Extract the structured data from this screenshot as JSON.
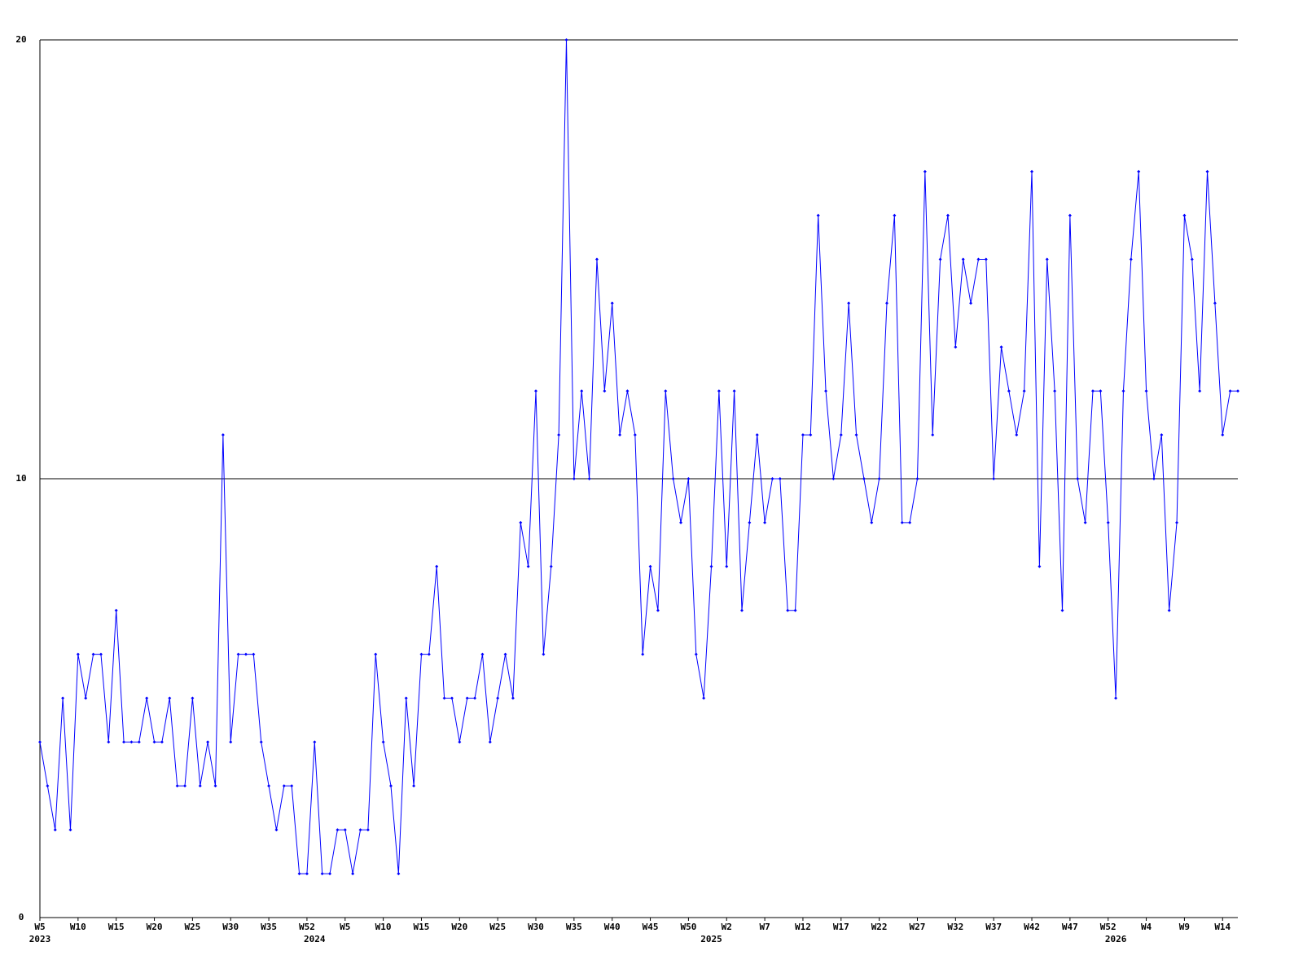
{
  "chart_data": {
    "type": "line",
    "categories": [
      "W5",
      null,
      null,
      null,
      null,
      "W10",
      null,
      null,
      null,
      null,
      "W15",
      null,
      null,
      null,
      null,
      "W20",
      null,
      null,
      null,
      null,
      "W25",
      null,
      null,
      null,
      null,
      "W30",
      null,
      null,
      null,
      null,
      "W35",
      null,
      null,
      null,
      null,
      "W52",
      null,
      null,
      null,
      null,
      "W5",
      null,
      null,
      null,
      null,
      "W10",
      null,
      null,
      null,
      null,
      "W15",
      null,
      null,
      null,
      null,
      "W20",
      null,
      null,
      null,
      null,
      "W25",
      null,
      null,
      null,
      null,
      "W30",
      null,
      null,
      null,
      null,
      "W35",
      null,
      null,
      null,
      null,
      "W40",
      null,
      null,
      null,
      null,
      "W45",
      null,
      null,
      null,
      null,
      "W50",
      null,
      null,
      null,
      null,
      "W2",
      null,
      null,
      null,
      null,
      "W7",
      null,
      null,
      null,
      null,
      "W12",
      null,
      null,
      null,
      null,
      "W17",
      null,
      null,
      null,
      null,
      "W22",
      null,
      null,
      null,
      null,
      "W27",
      null,
      null,
      null,
      null,
      "W32",
      null,
      null,
      null,
      null,
      "W37",
      null,
      null,
      null,
      null,
      "W42",
      null,
      null,
      null,
      null,
      "W47",
      null,
      null,
      null,
      null,
      "W52",
      null,
      null,
      null,
      null,
      "W4",
      null,
      null,
      null,
      null,
      "W9",
      null,
      null,
      null,
      null,
      "W14",
      null,
      null
    ],
    "category_years": [
      "2023",
      null,
      null,
      null,
      null,
      null,
      null,
      null,
      null,
      null,
      null,
      null,
      null,
      null,
      null,
      null,
      null,
      null,
      null,
      null,
      null,
      null,
      null,
      null,
      null,
      null,
      null,
      null,
      null,
      null,
      null,
      null,
      null,
      null,
      null,
      null,
      "2024",
      null,
      null,
      null,
      null,
      null,
      null,
      null,
      null,
      null,
      null,
      null,
      null,
      null,
      null,
      null,
      null,
      null,
      null,
      null,
      null,
      null,
      null,
      null,
      null,
      null,
      null,
      null,
      null,
      null,
      null,
      null,
      null,
      null,
      null,
      null,
      null,
      null,
      null,
      null,
      null,
      null,
      null,
      null,
      null,
      null,
      null,
      null,
      null,
      null,
      null,
      null,
      "2025",
      null,
      null,
      null,
      null,
      null,
      null,
      null,
      null,
      null,
      null,
      null,
      null,
      null,
      null,
      null,
      null,
      null,
      null,
      null,
      null,
      null,
      null,
      null,
      null,
      null,
      null,
      null,
      null,
      null,
      null,
      null,
      null,
      null,
      null,
      null,
      null,
      null,
      null,
      null,
      null,
      null,
      null,
      null,
      null,
      null,
      null,
      null,
      null,
      null,
      null,
      null,
      null,
      "2026",
      null,
      null,
      null,
      null,
      null,
      null,
      null,
      null,
      null,
      null,
      null,
      null,
      null,
      null,
      null,
      null
    ],
    "series": [
      {
        "color": "#0000ff",
        "values": [
          4,
          3,
          2,
          5,
          2,
          6,
          5,
          6,
          6,
          4,
          7,
          4,
          4,
          4,
          5,
          4,
          4,
          5,
          3,
          3,
          5,
          3,
          4,
          3,
          11,
          4,
          6,
          6,
          6,
          4,
          3,
          2,
          3,
          3,
          1,
          1,
          4,
          1,
          1,
          2,
          2,
          1,
          2,
          2,
          6,
          4,
          3,
          1,
          5,
          3,
          6,
          6,
          8,
          5,
          5,
          4,
          5,
          5,
          6,
          4,
          5,
          6,
          5,
          9,
          8,
          12,
          6,
          8,
          11,
          20,
          10,
          12,
          10,
          15,
          12,
          14,
          11,
          12,
          11,
          6,
          8,
          7,
          12,
          10,
          9,
          10,
          6,
          5,
          8,
          12,
          8,
          12,
          7,
          9,
          11,
          9,
          10,
          10,
          7,
          7,
          11,
          11,
          16,
          12,
          10,
          11,
          14,
          11,
          10,
          9,
          10,
          14,
          16,
          9,
          9,
          10,
          17,
          11,
          15,
          16,
          13,
          15,
          14,
          15,
          15,
          10,
          13,
          12,
          11,
          12,
          17,
          8,
          15,
          12,
          7,
          16,
          10,
          9,
          12,
          12,
          9,
          5,
          12,
          15,
          17,
          12,
          10,
          11,
          7,
          9,
          16,
          15,
          12,
          17,
          14,
          11,
          12,
          12
        ]
      }
    ],
    "ylim": [
      0,
      20
    ],
    "yticks": [
      0,
      10,
      20
    ],
    "grid": true
  }
}
